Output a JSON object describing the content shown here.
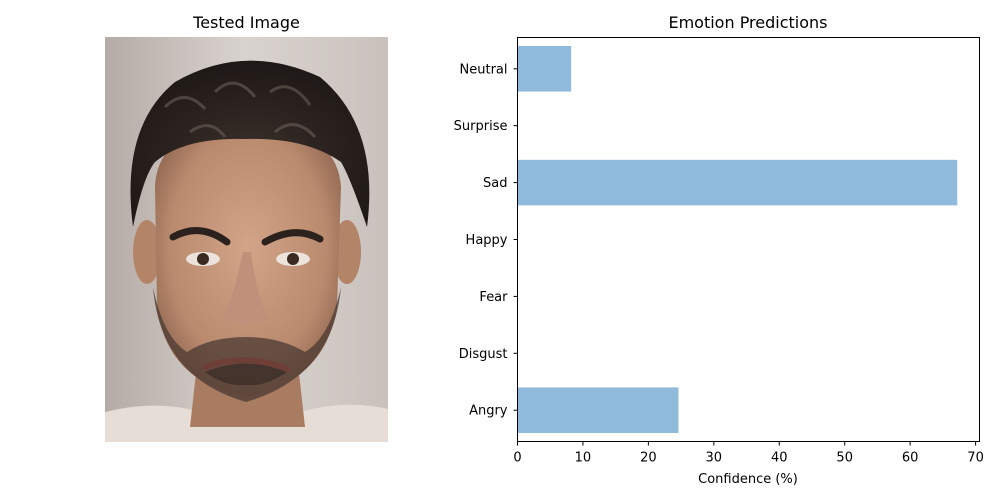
{
  "left_panel": {
    "title": "Tested Image"
  },
  "chart_data": {
    "type": "bar",
    "orientation": "horizontal",
    "title": "Emotion Predictions",
    "xlabel": "Confidence (%)",
    "ylabel": "",
    "categories": [
      "Angry",
      "Disgust",
      "Fear",
      "Happy",
      "Sad",
      "Surprise",
      "Neutral"
    ],
    "values": [
      24.6,
      0,
      0,
      0,
      67.2,
      0,
      8.2
    ],
    "xlim": [
      0,
      70.6
    ],
    "xticks": [
      0,
      10,
      20,
      30,
      40,
      50,
      60,
      70
    ],
    "bar_color": "#8fbadb",
    "grid": false
  }
}
